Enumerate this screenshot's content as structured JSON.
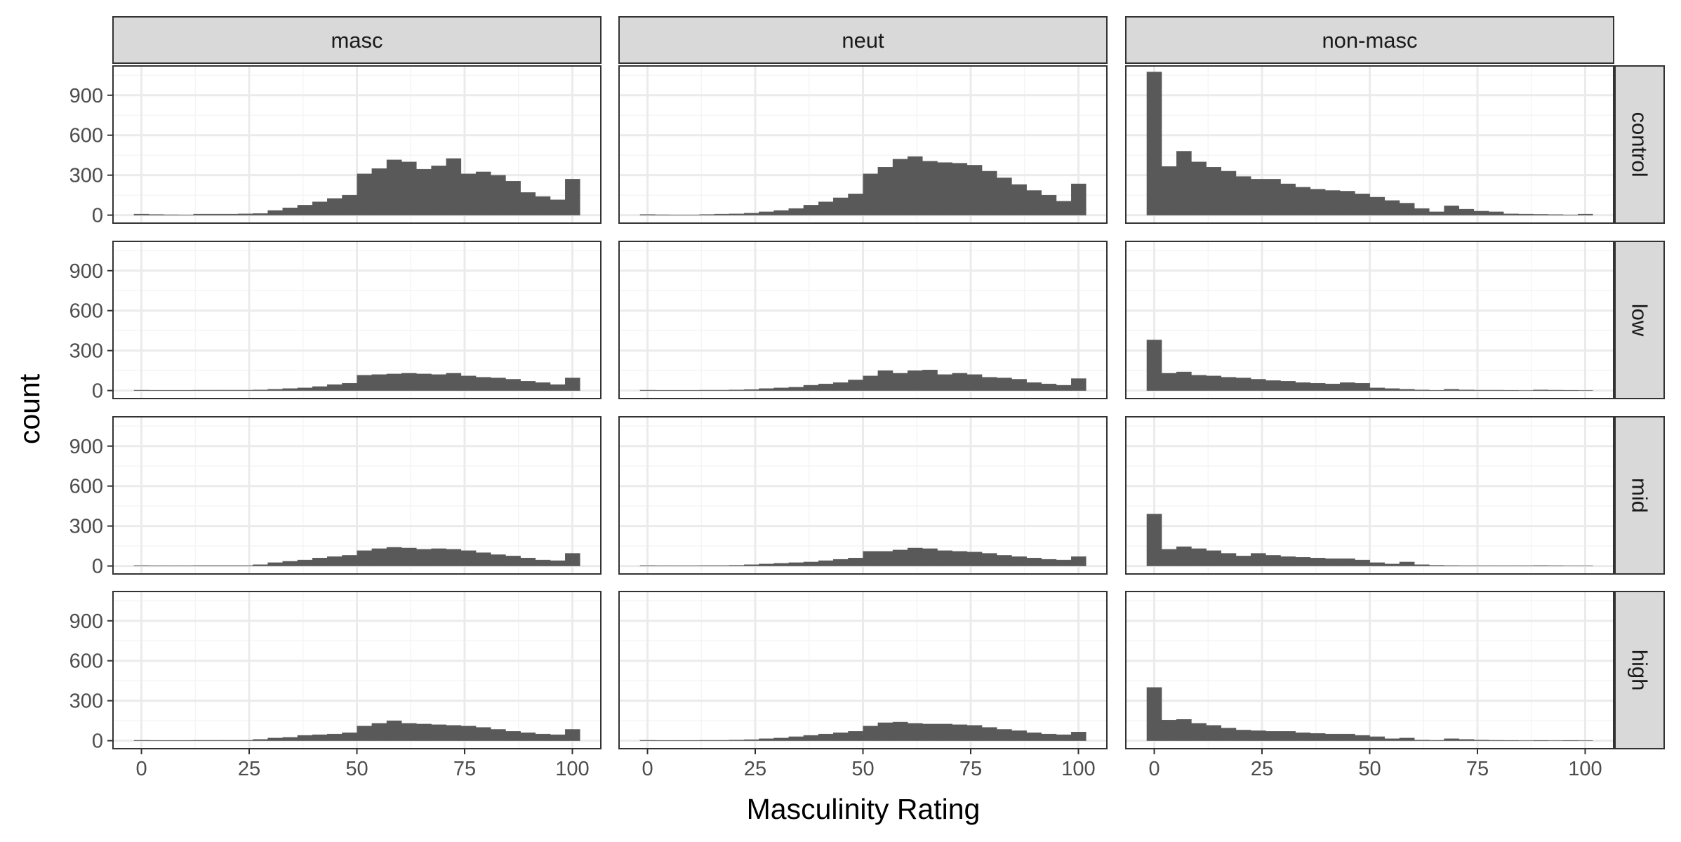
{
  "chart_data": {
    "type": "bar",
    "subtype": "faceted-histogram",
    "xlabel": "Masculinity Rating",
    "ylabel": "count",
    "xlim": [
      -6.6,
      106.6
    ],
    "ylim": [
      -60,
      1120
    ],
    "x_ticks": [
      0,
      25,
      50,
      75,
      100
    ],
    "y_ticks": [
      0,
      300,
      600,
      900
    ],
    "bins": {
      "count": 30,
      "width": 3.45,
      "first_center": 0
    },
    "grid": true,
    "legend": "none",
    "colors": {
      "bar_fill": "#595959",
      "strip_fill": "#d9d9d9",
      "panel_border": "#333333",
      "grid_major": "#ebebeb",
      "grid_minor": "#f5f5f5",
      "tick_label": "#4d4d4d"
    },
    "columns": [
      "masc",
      "neut",
      "non-masc"
    ],
    "rows": [
      "control",
      "low",
      "mid",
      "high"
    ],
    "panels": [
      {
        "col": "masc",
        "row": "control",
        "values": [
          8,
          5,
          3,
          2,
          8,
          8,
          8,
          10,
          12,
          35,
          55,
          75,
          100,
          125,
          150,
          310,
          350,
          415,
          400,
          345,
          370,
          425,
          310,
          325,
          300,
          255,
          170,
          140,
          115,
          270
        ]
      },
      {
        "col": "neut",
        "row": "control",
        "values": [
          5,
          3,
          2,
          2,
          5,
          8,
          10,
          15,
          25,
          35,
          50,
          75,
          100,
          130,
          160,
          310,
          360,
          420,
          440,
          405,
          395,
          390,
          375,
          330,
          280,
          230,
          185,
          150,
          105,
          235
        ]
      },
      {
        "col": "non-masc",
        "row": "control",
        "values": [
          1075,
          365,
          480,
          400,
          360,
          330,
          290,
          270,
          270,
          235,
          210,
          195,
          185,
          180,
          160,
          135,
          110,
          90,
          50,
          25,
          70,
          45,
          30,
          25,
          10,
          8,
          6,
          4,
          2,
          8
        ]
      },
      {
        "col": "masc",
        "row": "low",
        "values": [
          3,
          2,
          2,
          2,
          3,
          3,
          3,
          3,
          5,
          10,
          15,
          20,
          30,
          45,
          55,
          115,
          120,
          125,
          130,
          125,
          120,
          130,
          110,
          100,
          95,
          85,
          70,
          60,
          45,
          95
        ]
      },
      {
        "col": "neut",
        "row": "low",
        "values": [
          3,
          2,
          2,
          2,
          3,
          3,
          5,
          8,
          15,
          20,
          25,
          40,
          50,
          60,
          80,
          110,
          150,
          130,
          150,
          155,
          120,
          130,
          120,
          100,
          95,
          85,
          60,
          50,
          40,
          90
        ]
      },
      {
        "col": "non-masc",
        "row": "low",
        "values": [
          380,
          130,
          140,
          115,
          110,
          100,
          95,
          85,
          75,
          70,
          60,
          55,
          50,
          60,
          55,
          20,
          15,
          10,
          5,
          2,
          10,
          5,
          3,
          3,
          2,
          1,
          5,
          3,
          2,
          1
        ]
      },
      {
        "col": "masc",
        "row": "mid",
        "values": [
          3,
          2,
          2,
          2,
          3,
          3,
          3,
          3,
          10,
          25,
          35,
          45,
          60,
          70,
          80,
          115,
          130,
          140,
          135,
          125,
          130,
          125,
          115,
          100,
          85,
          75,
          60,
          45,
          40,
          95
        ]
      },
      {
        "col": "neut",
        "row": "mid",
        "values": [
          3,
          2,
          2,
          2,
          3,
          3,
          5,
          10,
          15,
          20,
          25,
          30,
          40,
          50,
          60,
          110,
          110,
          120,
          135,
          130,
          115,
          110,
          105,
          95,
          80,
          70,
          60,
          50,
          45,
          70
        ]
      },
      {
        "col": "non-masc",
        "row": "mid",
        "values": [
          390,
          125,
          145,
          130,
          115,
          95,
          75,
          95,
          80,
          70,
          65,
          60,
          55,
          55,
          45,
          25,
          15,
          30,
          10,
          5,
          3,
          2,
          2,
          2,
          2,
          2,
          3,
          2,
          1,
          1
        ]
      },
      {
        "col": "masc",
        "row": "high",
        "values": [
          3,
          2,
          2,
          2,
          3,
          3,
          3,
          3,
          10,
          20,
          25,
          40,
          45,
          50,
          60,
          110,
          130,
          150,
          130,
          125,
          120,
          115,
          110,
          100,
          85,
          70,
          60,
          50,
          45,
          85
        ]
      },
      {
        "col": "neut",
        "row": "high",
        "values": [
          3,
          2,
          2,
          2,
          3,
          3,
          5,
          8,
          15,
          20,
          30,
          40,
          50,
          60,
          70,
          110,
          135,
          140,
          130,
          125,
          125,
          120,
          115,
          100,
          85,
          75,
          60,
          50,
          45,
          65
        ]
      },
      {
        "col": "non-masc",
        "row": "high",
        "values": [
          400,
          155,
          160,
          130,
          115,
          95,
          80,
          75,
          70,
          70,
          60,
          55,
          50,
          50,
          40,
          30,
          15,
          20,
          5,
          3,
          15,
          10,
          5,
          3,
          2,
          1,
          2,
          1,
          2,
          1
        ]
      }
    ]
  }
}
